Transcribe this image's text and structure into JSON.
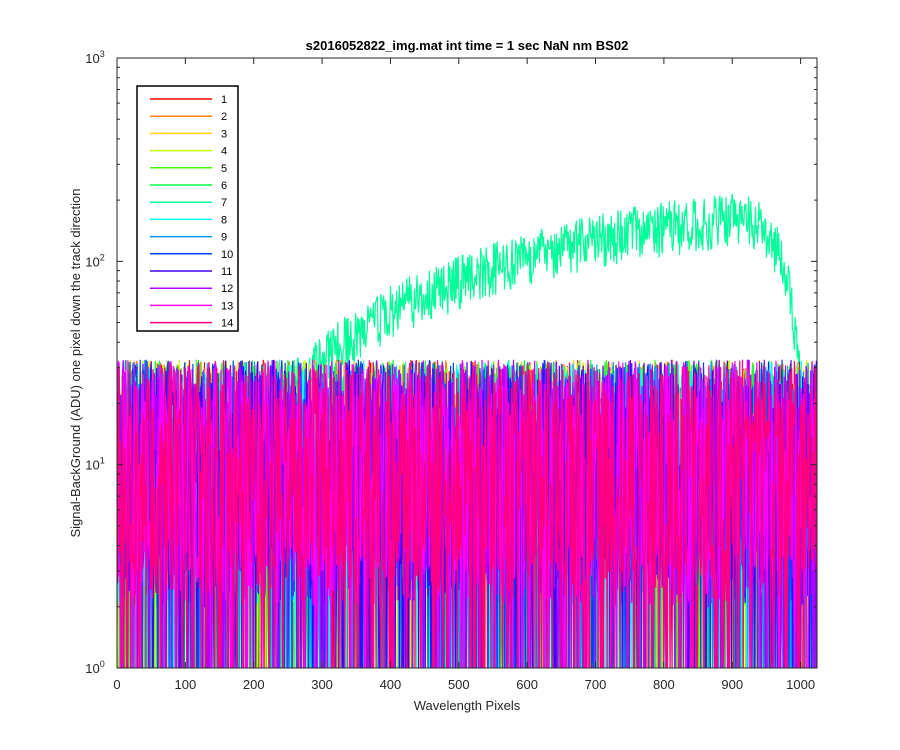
{
  "chart_data": {
    "type": "line",
    "title": "s2016052822_img.mat int time = 1 sec  NaN nm BS02",
    "xlabel": "Wavelength Pixels",
    "ylabel": "Signal-BackGround (ADU) one pixel down the track direction",
    "xlim": [
      0,
      1024
    ],
    "ylim": [
      1,
      1000
    ],
    "yscale": "log",
    "x_ticks": [
      0,
      100,
      200,
      300,
      400,
      500,
      600,
      700,
      800,
      900,
      1000
    ],
    "y_ticks": [
      {
        "value": 1,
        "base": "10",
        "exp": "0"
      },
      {
        "value": 10,
        "base": "10",
        "exp": "1"
      },
      {
        "value": 100,
        "base": "10",
        "exp": "2"
      },
      {
        "value": 1000,
        "base": "10",
        "exp": "3"
      }
    ],
    "grid": false,
    "legend_position": "top-left",
    "series": [
      {
        "name": "1",
        "color": "#ff0000",
        "noise_range": [
          2,
          30
        ]
      },
      {
        "name": "2",
        "color": "#ff8000",
        "noise_range": [
          2,
          30
        ]
      },
      {
        "name": "3",
        "color": "#ffd700",
        "noise_range": [
          2,
          30
        ]
      },
      {
        "name": "4",
        "color": "#c0ff00",
        "noise_range": [
          2,
          30
        ]
      },
      {
        "name": "5",
        "color": "#40ff00",
        "noise_range": [
          2,
          30
        ]
      },
      {
        "name": "6",
        "color": "#00ff40",
        "noise_range": [
          2,
          30
        ]
      },
      {
        "name": "7",
        "color": "#00ff99",
        "signal": {
          "x": [
            0,
            100,
            200,
            260,
            300,
            350,
            400,
            450,
            500,
            550,
            600,
            650,
            700,
            750,
            800,
            850,
            900,
            930,
            960,
            975,
            990,
            1000,
            1024
          ],
          "y": [
            8,
            12,
            18,
            25,
            33,
            45,
            58,
            70,
            82,
            95,
            108,
            120,
            132,
            142,
            150,
            158,
            165,
            160,
            130,
            100,
            50,
            25,
            12
          ]
        }
      },
      {
        "name": "8",
        "color": "#00ffff",
        "noise_range": [
          2,
          30
        ]
      },
      {
        "name": "9",
        "color": "#0099ff",
        "noise_range": [
          2,
          30
        ]
      },
      {
        "name": "10",
        "color": "#0040ff",
        "noise_range": [
          2,
          30
        ]
      },
      {
        "name": "11",
        "color": "#4000ff",
        "noise_range": [
          2,
          30
        ]
      },
      {
        "name": "12",
        "color": "#b000ff",
        "noise_range": [
          2,
          30
        ]
      },
      {
        "name": "13",
        "color": "#ff00ff",
        "noise_range": [
          2,
          30
        ]
      },
      {
        "name": "14",
        "color": "#ff0080",
        "noise_range": [
          2,
          30
        ]
      }
    ]
  }
}
